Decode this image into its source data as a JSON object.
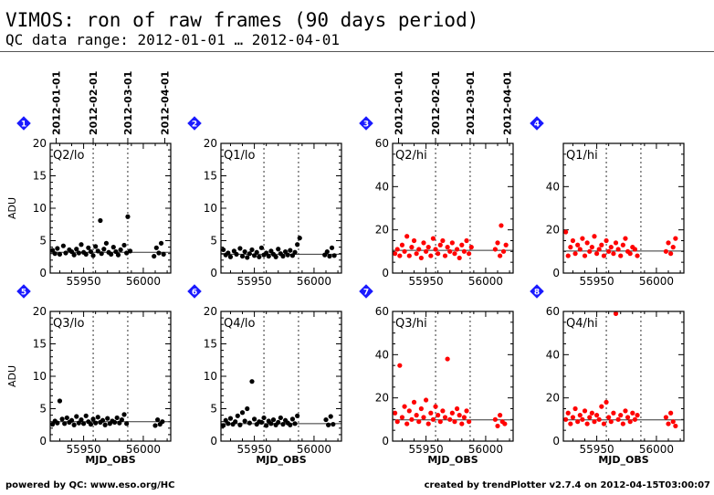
{
  "header": {
    "title": "VIMOS: ron of raw frames (90 days period)",
    "subtitle": "QC data range: 2012-01-01 … 2012-04-01"
  },
  "footer": {
    "left": "powered by QC: www.eso.org/HC",
    "right": "created by trendPlotter v2.7.4 on 2012-04-15T03:00:07"
  },
  "date_ticks": [
    {
      "label": "2012-01-01",
      "mjd": 55927
    },
    {
      "label": "2012-02-01",
      "mjd": 55958
    },
    {
      "label": "2012-03-01",
      "mjd": 55987
    },
    {
      "label": "2012-04-01",
      "mjd": 56018
    }
  ],
  "colors": {
    "lo": "#000000",
    "hi": "#ff0000",
    "badge": "#1a1aff"
  },
  "chart_data": [
    {
      "type": "scatter",
      "badge": "1",
      "label": "Q2/lo",
      "ylabel": "ADU",
      "xlabel": "",
      "xlim": [
        55922,
        56023
      ],
      "ylim": [
        0,
        20
      ],
      "xticks": [
        55950,
        56000
      ],
      "yticks": [
        0,
        5,
        10,
        15,
        20
      ],
      "ref_line": 3.2,
      "color": "#000000",
      "x": [
        55924,
        55926,
        55928,
        55930,
        55933,
        55935,
        55938,
        55940,
        55942,
        55944,
        55946,
        55948,
        55950,
        55952,
        55954,
        55956,
        55958,
        55960,
        55962,
        55964,
        55965,
        55967,
        55969,
        55971,
        55973,
        55975,
        55977,
        55979,
        55981,
        55984,
        55986,
        55987,
        55989,
        56009,
        56011,
        56013,
        56015,
        56017
      ],
      "y": [
        3.5,
        3.0,
        3.8,
        2.9,
        4.2,
        3.1,
        3.6,
        3.3,
        2.8,
        3.7,
        3.1,
        4.4,
        3.2,
        2.9,
        3.9,
        3.3,
        2.7,
        4.1,
        3.4,
        8.1,
        3.0,
        3.7,
        4.6,
        3.2,
        2.9,
        4.0,
        3.3,
        2.8,
        3.6,
        4.3,
        3.1,
        8.7,
        3.4,
        2.6,
        3.9,
        3.1,
        4.6,
        2.9
      ]
    },
    {
      "type": "scatter",
      "badge": "2",
      "label": "Q1/lo",
      "ylabel": "",
      "xlabel": "",
      "xlim": [
        55922,
        56023
      ],
      "ylim": [
        0,
        20
      ],
      "xticks": [
        55950,
        56000
      ],
      "yticks": [
        0,
        5,
        10,
        15,
        20
      ],
      "ref_line": 2.9,
      "color": "#000000",
      "x": [
        55924,
        55926,
        55928,
        55930,
        55933,
        55935,
        55938,
        55940,
        55942,
        55944,
        55946,
        55948,
        55950,
        55952,
        55954,
        55956,
        55958,
        55960,
        55962,
        55964,
        55966,
        55968,
        55970,
        55972,
        55974,
        55976,
        55978,
        55980,
        55982,
        55984,
        55986,
        55988,
        56009,
        56011,
        56013,
        56015,
        56017
      ],
      "y": [
        3.6,
        2.8,
        3.1,
        2.5,
        3.4,
        2.9,
        3.8,
        2.6,
        3.3,
        2.4,
        3.0,
        3.6,
        2.7,
        3.2,
        2.5,
        3.9,
        2.8,
        3.1,
        2.6,
        3.4,
        2.9,
        2.5,
        3.7,
        3.0,
        2.6,
        3.3,
        2.8,
        3.5,
        2.7,
        3.2,
        4.4,
        5.4,
        2.8,
        3.3,
        2.6,
        3.9,
        2.7
      ]
    },
    {
      "type": "scatter",
      "badge": "3",
      "label": "Q2/hi",
      "ylabel": "",
      "xlabel": "",
      "xlim": [
        55922,
        56023
      ],
      "ylim": [
        0,
        60
      ],
      "xticks": [
        55950,
        56000
      ],
      "yticks": [
        0,
        20,
        40,
        60
      ],
      "ref_line": 10.5,
      "color": "#ff0000",
      "x": [
        55924,
        55926,
        55928,
        55930,
        55932,
        55934,
        55936,
        55938,
        55940,
        55942,
        55944,
        55946,
        55948,
        55950,
        55952,
        55954,
        55956,
        55958,
        55960,
        55962,
        55964,
        55966,
        55968,
        55970,
        55972,
        55974,
        55976,
        55978,
        55980,
        55982,
        55984,
        55986,
        55988,
        56008,
        56010,
        56012,
        56013,
        56015,
        56017
      ],
      "y": [
        9,
        11,
        8,
        13,
        10,
        17,
        8,
        12,
        15,
        9,
        11,
        7,
        14,
        10,
        12,
        8,
        16,
        11,
        9,
        13,
        15,
        8,
        12,
        10,
        14,
        9,
        11,
        7,
        13,
        10,
        15,
        9,
        12,
        11,
        14,
        8,
        22,
        10,
        13
      ]
    },
    {
      "type": "scatter",
      "badge": "4",
      "label": "Q1/hi",
      "ylabel": "",
      "xlabel": "",
      "xlim": [
        55922,
        56023
      ],
      "ylim": [
        0,
        60
      ],
      "xticks": [
        55950,
        56000
      ],
      "yticks": [
        0,
        20,
        40
      ],
      "ref_line": 10.2,
      "color": "#ff0000",
      "x": [
        55924,
        55926,
        55928,
        55930,
        55932,
        55934,
        55936,
        55938,
        55940,
        55942,
        55944,
        55946,
        55948,
        55950,
        55952,
        55954,
        55956,
        55958,
        55960,
        55962,
        55964,
        55966,
        55968,
        55970,
        55972,
        55974,
        55976,
        55978,
        55980,
        55982,
        55984,
        56008,
        56010,
        56012,
        56014,
        56016
      ],
      "y": [
        19,
        8,
        12,
        15,
        9,
        13,
        11,
        16,
        8,
        14,
        10,
        12,
        17,
        9,
        11,
        13,
        8,
        15,
        10,
        12,
        9,
        14,
        11,
        8,
        13,
        16,
        10,
        9,
        12,
        11,
        8,
        10,
        14,
        9,
        12,
        16
      ]
    },
    {
      "type": "scatter",
      "badge": "5",
      "label": "Q3/lo",
      "ylabel": "ADU",
      "xlabel": "MJD_OBS",
      "xlim": [
        55922,
        56023
      ],
      "ylim": [
        0,
        20
      ],
      "xticks": [
        55950,
        56000
      ],
      "yticks": [
        0,
        5,
        10,
        15,
        20
      ],
      "ref_line": 3.0,
      "color": "#000000",
      "x": [
        55924,
        55926,
        55928,
        55930,
        55932,
        55934,
        55936,
        55938,
        55940,
        55942,
        55944,
        55946,
        55948,
        55950,
        55952,
        55954,
        55956,
        55958,
        55960,
        55962,
        55964,
        55966,
        55968,
        55970,
        55972,
        55974,
        55976,
        55978,
        55980,
        55982,
        55984,
        55986,
        56010,
        56012,
        56014,
        56016
      ],
      "y": [
        2.6,
        3.1,
        2.8,
        6.2,
        3.4,
        2.7,
        3.6,
        2.9,
        3.2,
        2.5,
        3.8,
        2.8,
        3.3,
        2.7,
        3.9,
        3.0,
        2.6,
        3.4,
        2.8,
        3.7,
        2.9,
        3.2,
        2.5,
        3.5,
        2.7,
        3.1,
        2.9,
        3.6,
        2.8,
        3.3,
        4.1,
        2.7,
        2.4,
        3.3,
        2.6,
        3.0
      ]
    },
    {
      "type": "scatter",
      "badge": "6",
      "label": "Q4/lo",
      "ylabel": "",
      "xlabel": "MJD_OBS",
      "xlim": [
        55922,
        56023
      ],
      "ylim": [
        0,
        20
      ],
      "xticks": [
        55950,
        56000
      ],
      "yticks": [
        0,
        5,
        10,
        15,
        20
      ],
      "ref_line": 2.7,
      "color": "#000000",
      "x": [
        55924,
        55926,
        55928,
        55930,
        55932,
        55934,
        55936,
        55938,
        55940,
        55942,
        55944,
        55946,
        55948,
        55950,
        55952,
        55954,
        55956,
        55958,
        55960,
        55962,
        55964,
        55966,
        55968,
        55970,
        55972,
        55974,
        55976,
        55978,
        55980,
        55982,
        55984,
        55986,
        56010,
        56012,
        56014,
        56016
      ],
      "y": [
        2.4,
        3.2,
        2.7,
        3.5,
        2.6,
        3.0,
        3.9,
        2.5,
        4.4,
        3.1,
        5.0,
        2.8,
        9.2,
        3.4,
        2.6,
        3.0,
        2.9,
        3.6,
        2.4,
        3.1,
        2.7,
        3.3,
        2.5,
        2.9,
        3.6,
        2.6,
        3.2,
        2.8,
        2.5,
        3.4,
        2.7,
        3.9,
        3.3,
        2.5,
        3.8,
        2.6
      ]
    },
    {
      "type": "scatter",
      "badge": "7",
      "label": "Q3/hi",
      "ylabel": "",
      "xlabel": "MJD_OBS",
      "xlim": [
        55922,
        56023
      ],
      "ylim": [
        0,
        60
      ],
      "xticks": [
        55950,
        56000
      ],
      "yticks": [
        0,
        20,
        40,
        60
      ],
      "ref_line": 9.8,
      "color": "#ff0000",
      "x": [
        55924,
        55926,
        55928,
        55930,
        55932,
        55934,
        55936,
        55938,
        55940,
        55942,
        55944,
        55946,
        55948,
        55950,
        55952,
        55954,
        55956,
        55958,
        55960,
        55962,
        55964,
        55966,
        55968,
        55970,
        55972,
        55974,
        55976,
        55978,
        55980,
        55982,
        55984,
        55986,
        56008,
        56010,
        56012,
        56014,
        56016
      ],
      "y": [
        13,
        9,
        35,
        11,
        16,
        8,
        14,
        10,
        18,
        12,
        9,
        15,
        11,
        19,
        8,
        13,
        10,
        16,
        12,
        9,
        14,
        11,
        38,
        10,
        13,
        9,
        15,
        12,
        8,
        11,
        14,
        9,
        10,
        7,
        12,
        9,
        8
      ]
    },
    {
      "type": "scatter",
      "badge": "8",
      "label": "Q4/hi",
      "ylabel": "",
      "xlabel": "MJD_OBS",
      "xlim": [
        55922,
        56023
      ],
      "ylim": [
        0,
        60
      ],
      "xticks": [
        55950,
        56000
      ],
      "yticks": [
        0,
        20,
        40,
        60
      ],
      "ref_line": 9.8,
      "color": "#ff0000",
      "x": [
        55924,
        55926,
        55928,
        55930,
        55932,
        55934,
        55936,
        55938,
        55940,
        55942,
        55944,
        55946,
        55948,
        55950,
        55952,
        55954,
        55956,
        55958,
        55960,
        55962,
        55964,
        55966,
        55968,
        55970,
        55972,
        55974,
        55976,
        55978,
        55980,
        55982,
        55984,
        56008,
        56010,
        56012,
        56014,
        56016
      ],
      "y": [
        10,
        13,
        8,
        11,
        15,
        9,
        12,
        10,
        14,
        8,
        11,
        13,
        9,
        12,
        10,
        16,
        8,
        18,
        11,
        9,
        13,
        59,
        10,
        12,
        8,
        14,
        11,
        9,
        13,
        10,
        12,
        11,
        8,
        13,
        9,
        7
      ]
    }
  ]
}
